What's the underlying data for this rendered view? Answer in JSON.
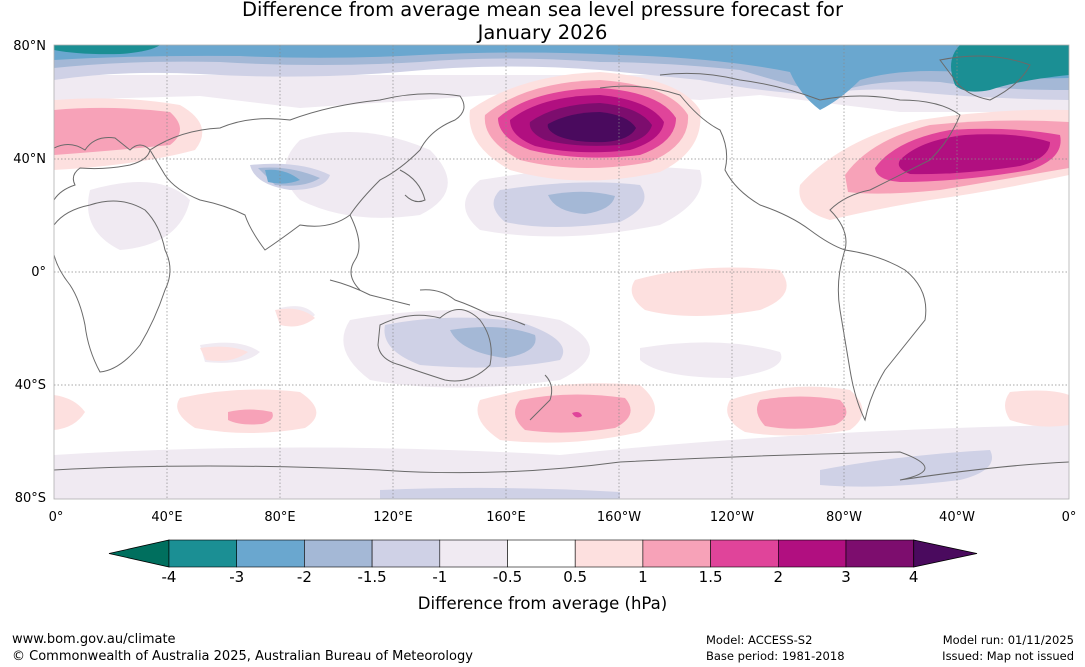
{
  "title": {
    "line1": "Difference from average mean sea level pressure forecast for",
    "line2": "January 2026"
  },
  "axes": {
    "lat_labels": [
      "80°N",
      "40°N",
      "0°",
      "40°S",
      "80°S"
    ],
    "lon_labels": [
      "0°",
      "40°E",
      "80°E",
      "120°E",
      "160°E",
      "160°W",
      "120°W",
      "80°W",
      "40°W",
      "0°"
    ]
  },
  "colorbar": {
    "ticks": [
      "-4",
      "-3",
      "-2",
      "-1.5",
      "-1",
      "-0.5",
      "0.5",
      "1",
      "1.5",
      "2",
      "3",
      "4"
    ],
    "colors": [
      "#1b8f94",
      "#6aa7cf",
      "#a4b8d6",
      "#cfd1e6",
      "#f0eaf2",
      "#ffffff",
      "#fde0df",
      "#f7a2b8",
      "#e0449a",
      "#b10f80",
      "#7d0d6e"
    ],
    "low_extend_color": "#006f5e",
    "high_extend_color": "#4a0a5e",
    "label": "Difference from average (hPa)"
  },
  "footer": {
    "site": "www.bom.gov.au/climate",
    "copyright": "© Commonwealth of Australia 2025, Australian Bureau of Meteorology",
    "model": "Model: ACCESS-S2",
    "base_period": "Base period: 1981-2018",
    "model_run": "Model run: 01/11/2025",
    "issued": "Issued: Map not issued"
  }
}
